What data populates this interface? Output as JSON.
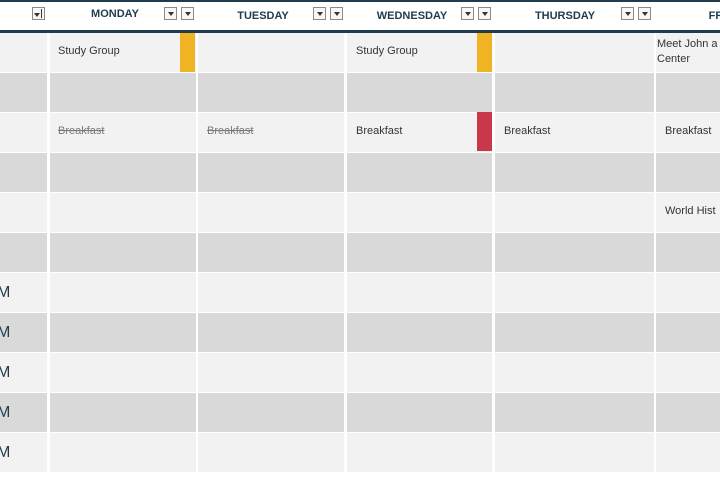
{
  "header": {
    "days": [
      "MONDAY",
      "TUESDAY",
      "WEDNESDAY",
      "THURSDAY",
      "FR"
    ]
  },
  "colors": {
    "header_border": "#1f3b4d",
    "row_light": "#f2f2f2",
    "row_dark": "#d9d9d9",
    "yellow_tag": "#f0b323",
    "red_tag": "#c9384a"
  },
  "time_labels": [
    "M",
    "M",
    "M",
    "M",
    "M"
  ],
  "events": {
    "row1_monday": "Study Group",
    "row1_wednesday": "Study Group",
    "row1_friday_line1": "Meet John a",
    "row1_friday_line2": "Center",
    "row3_monday": "Breakfast",
    "row3_tuesday": "Breakfast",
    "row3_wednesday": "Breakfast",
    "row3_thursday": "Breakfast",
    "row3_friday": "Breakfast",
    "row5_friday": "World Hist"
  }
}
